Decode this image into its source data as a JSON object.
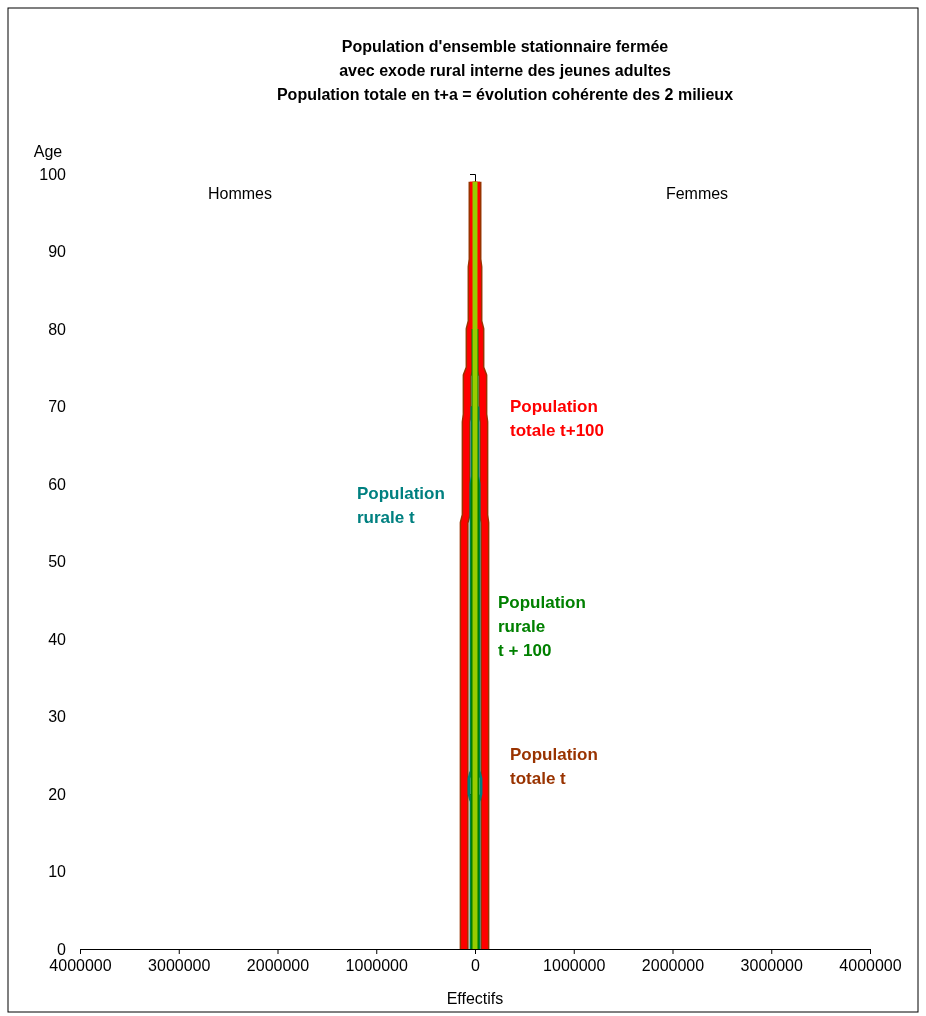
{
  "chart_data": {
    "type": "line",
    "orientation": "horizontal",
    "title": "Population d'ensemble stationnaire fermée\navec exode rural interne des jeunes adultes\nPopulation totale en t+a = évolution cohérente des 2 milieux",
    "xlabel": "Effectifs",
    "ylabel": "Age",
    "xlim": [
      -4000000,
      4000000
    ],
    "ylim": [
      0,
      100
    ],
    "xticks": [
      {
        "value": -4000000,
        "label": "4000000"
      },
      {
        "value": -3000000,
        "label": "3000000"
      },
      {
        "value": -2000000,
        "label": "2000000"
      },
      {
        "value": -1000000,
        "label": "1000000"
      },
      0,
      1000000,
      2000000,
      3000000,
      4000000
    ],
    "yticks": [
      0,
      10,
      20,
      30,
      40,
      50,
      60,
      70,
      80,
      90,
      100
    ],
    "grid": false,
    "legend": false,
    "marker": "none",
    "line_style": "solid",
    "annotations": [
      "Hommes",
      "Femmes"
    ],
    "series": [
      {
        "color": "#993300",
        "x": [
          0,
          55,
          56,
          68,
          69,
          74,
          75,
          80,
          81,
          88,
          89,
          99
        ],
        "values": [
          -110000,
          -110000,
          -90000,
          -90000,
          -80000,
          -80000,
          -50000,
          -50000,
          -30000,
          -30000,
          -20000,
          -20000
        ]
      },
      {
        "name": "Population\ntotale t",
        "color": "#993300",
        "x": [
          0,
          55,
          56,
          68,
          69,
          74,
          75,
          80,
          81,
          88,
          89,
          99
        ],
        "values": [
          100000,
          100000,
          90000,
          90000,
          80000,
          80000,
          50000,
          50000,
          30000,
          30000,
          20000,
          20000
        ]
      },
      {
        "color": "#ff0000",
        "x": [
          0,
          55,
          56,
          68,
          69,
          74,
          75,
          80,
          81,
          88,
          89,
          99
        ],
        "values": [
          -110000,
          -110000,
          -90000,
          -90000,
          -80000,
          -80000,
          -50000,
          -50000,
          -30000,
          -30000,
          -20000,
          -20000
        ]
      },
      {
        "name": "Population\ntotale t+100",
        "color": "#ff0000",
        "x": [
          0,
          55,
          56,
          68,
          69,
          74,
          75,
          80,
          81,
          88,
          89,
          99
        ],
        "values": [
          100000,
          100000,
          90000,
          90000,
          80000,
          80000,
          50000,
          50000,
          30000,
          30000,
          20000,
          20000
        ]
      },
      {
        "name": "Population\nrurale t",
        "color": "#008080",
        "x": [
          0,
          19,
          20,
          22,
          23,
          60,
          61,
          70
        ],
        "values": [
          -40000,
          -40000,
          -60000,
          -60000,
          -40000,
          -40000,
          -30000,
          -30000
        ]
      },
      {
        "color": "#008080",
        "x": [
          0,
          19,
          20,
          22,
          23,
          60,
          61,
          70
        ],
        "values": [
          40000,
          40000,
          60000,
          60000,
          40000,
          40000,
          30000,
          30000
        ]
      },
      {
        "color": "#008000",
        "x": [
          0,
          60,
          61,
          80
        ],
        "values": [
          -30000,
          -30000,
          -20000,
          -20000
        ]
      },
      {
        "name": "Population\nrurale\nt + 100",
        "color": "#008000",
        "x": [
          0,
          60,
          61,
          80
        ],
        "values": [
          30000,
          30000,
          20000,
          20000
        ]
      },
      {
        "color": "#99cc00",
        "x": [
          0,
          99
        ],
        "values": [
          -10000,
          -10000
        ]
      },
      {
        "color": "#99cc00",
        "x": [
          0,
          99
        ],
        "values": [
          10000,
          10000
        ]
      }
    ]
  }
}
